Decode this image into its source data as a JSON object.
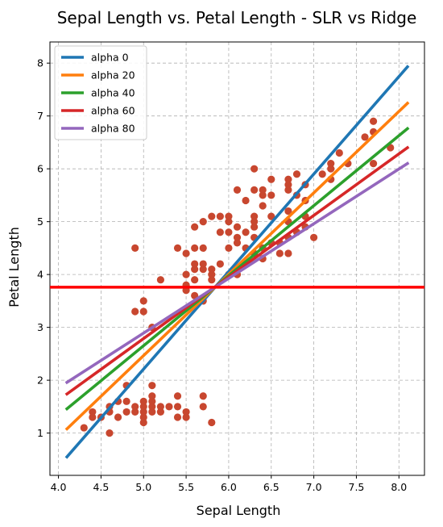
{
  "chart_data": {
    "type": "scatter",
    "title": "Sepal Length vs. Petal Length - SLR vs Ridge",
    "xlabel": "Sepal Length",
    "ylabel": "Petal Length",
    "xlim": [
      3.9,
      8.3
    ],
    "ylim": [
      0.2,
      8.4
    ],
    "x_ticks": [
      4.0,
      4.5,
      5.0,
      5.5,
      6.0,
      6.5,
      7.0,
      7.5,
      8.0
    ],
    "x_tick_labels": [
      "4.0",
      "4.5",
      "5.0",
      "5.5",
      "6.0",
      "6.5",
      "7.0",
      "7.5",
      "8.0"
    ],
    "y_ticks": [
      1,
      2,
      3,
      4,
      5,
      6,
      7,
      8
    ],
    "y_tick_labels": [
      "1",
      "2",
      "3",
      "4",
      "5",
      "6",
      "7",
      "8"
    ],
    "grid": true,
    "legend_position": "top-left",
    "point_color": "#c8472f",
    "scatter_points": [
      [
        4.3,
        1.1
      ],
      [
        4.4,
        1.3
      ],
      [
        4.4,
        1.4
      ],
      [
        4.5,
        1.3
      ],
      [
        4.6,
        1.0
      ],
      [
        4.6,
        1.4
      ],
      [
        4.6,
        1.5
      ],
      [
        4.7,
        1.3
      ],
      [
        4.7,
        1.6
      ],
      [
        4.8,
        1.4
      ],
      [
        4.8,
        1.6
      ],
      [
        4.8,
        1.9
      ],
      [
        4.9,
        1.4
      ],
      [
        4.9,
        1.5
      ],
      [
        5.0,
        1.2
      ],
      [
        5.0,
        1.3
      ],
      [
        5.0,
        1.4
      ],
      [
        5.0,
        1.5
      ],
      [
        5.0,
        1.6
      ],
      [
        5.1,
        1.4
      ],
      [
        5.1,
        1.5
      ],
      [
        5.1,
        1.6
      ],
      [
        5.1,
        1.7
      ],
      [
        5.1,
        1.9
      ],
      [
        5.2,
        1.4
      ],
      [
        5.2,
        1.5
      ],
      [
        5.3,
        1.5
      ],
      [
        5.4,
        1.3
      ],
      [
        5.4,
        1.5
      ],
      [
        5.4,
        1.7
      ],
      [
        5.5,
        1.3
      ],
      [
        5.5,
        1.4
      ],
      [
        5.7,
        1.5
      ],
      [
        5.7,
        1.7
      ],
      [
        5.8,
        1.2
      ],
      [
        4.9,
        4.5
      ],
      [
        4.9,
        3.3
      ],
      [
        5.0,
        3.5
      ],
      [
        5.0,
        3.3
      ],
      [
        5.1,
        3.0
      ],
      [
        5.2,
        3.9
      ],
      [
        5.4,
        4.5
      ],
      [
        5.5,
        4.0
      ],
      [
        5.5,
        4.4
      ],
      [
        5.5,
        3.8
      ],
      [
        5.5,
        3.7
      ],
      [
        5.6,
        3.6
      ],
      [
        5.6,
        3.9
      ],
      [
        5.6,
        4.1
      ],
      [
        5.6,
        4.2
      ],
      [
        5.6,
        4.5
      ],
      [
        5.6,
        4.9
      ],
      [
        5.7,
        3.5
      ],
      [
        5.7,
        4.1
      ],
      [
        5.7,
        4.2
      ],
      [
        5.7,
        4.5
      ],
      [
        5.7,
        5.0
      ],
      [
        5.8,
        3.9
      ],
      [
        5.8,
        4.0
      ],
      [
        5.8,
        4.1
      ],
      [
        5.8,
        5.1
      ],
      [
        5.9,
        4.2
      ],
      [
        5.9,
        4.8
      ],
      [
        5.9,
        5.1
      ],
      [
        6.0,
        4.0
      ],
      [
        6.0,
        4.5
      ],
      [
        6.0,
        4.8
      ],
      [
        6.0,
        5.0
      ],
      [
        6.0,
        5.1
      ],
      [
        6.1,
        4.0
      ],
      [
        6.1,
        4.6
      ],
      [
        6.1,
        4.7
      ],
      [
        6.1,
        4.9
      ],
      [
        6.1,
        5.6
      ],
      [
        6.2,
        4.5
      ],
      [
        6.2,
        4.8
      ],
      [
        6.2,
        5.4
      ],
      [
        6.3,
        4.4
      ],
      [
        6.3,
        4.7
      ],
      [
        6.3,
        4.9
      ],
      [
        6.3,
        5.0
      ],
      [
        6.3,
        5.1
      ],
      [
        6.3,
        5.6
      ],
      [
        6.3,
        6.0
      ],
      [
        6.4,
        4.3
      ],
      [
        6.4,
        4.5
      ],
      [
        6.4,
        5.3
      ],
      [
        6.4,
        5.5
      ],
      [
        6.4,
        5.6
      ],
      [
        6.5,
        4.6
      ],
      [
        6.5,
        5.1
      ],
      [
        6.5,
        5.5
      ],
      [
        6.5,
        5.8
      ],
      [
        6.6,
        4.4
      ],
      [
        6.6,
        4.6
      ],
      [
        6.7,
        4.4
      ],
      [
        6.7,
        4.7
      ],
      [
        6.7,
        5.0
      ],
      [
        6.7,
        5.2
      ],
      [
        6.7,
        5.6
      ],
      [
        6.7,
        5.7
      ],
      [
        6.7,
        5.8
      ],
      [
        6.8,
        4.8
      ],
      [
        6.8,
        5.5
      ],
      [
        6.8,
        5.9
      ],
      [
        6.9,
        4.9
      ],
      [
        6.9,
        5.1
      ],
      [
        6.9,
        5.4
      ],
      [
        6.9,
        5.7
      ],
      [
        7.0,
        4.7
      ],
      [
        7.1,
        5.9
      ],
      [
        7.2,
        5.8
      ],
      [
        7.2,
        6.0
      ],
      [
        7.2,
        6.1
      ],
      [
        7.3,
        6.3
      ],
      [
        7.4,
        6.1
      ],
      [
        7.6,
        6.6
      ],
      [
        7.7,
        6.1
      ],
      [
        7.7,
        6.7
      ],
      [
        7.7,
        6.9
      ],
      [
        7.9,
        6.4
      ]
    ],
    "series": [
      {
        "name": "alpha 0",
        "color": "#1f77b4",
        "x": [
          4.1,
          8.1
        ],
        "y": [
          0.55,
          7.93
        ]
      },
      {
        "name": "alpha 20",
        "color": "#ff7f0e",
        "x": [
          4.1,
          8.1
        ],
        "y": [
          1.08,
          7.24
        ]
      },
      {
        "name": "alpha 40",
        "color": "#2ca02c",
        "x": [
          4.1,
          8.1
        ],
        "y": [
          1.46,
          6.76
        ]
      },
      {
        "name": "alpha 60",
        "color": "#d62728",
        "x": [
          4.1,
          8.1
        ],
        "y": [
          1.74,
          6.4
        ]
      },
      {
        "name": "alpha 80",
        "color": "#9467bd",
        "x": [
          4.1,
          8.1
        ],
        "y": [
          1.96,
          6.1
        ]
      }
    ],
    "hline": {
      "y": 3.76,
      "color": "#ff0000"
    }
  }
}
